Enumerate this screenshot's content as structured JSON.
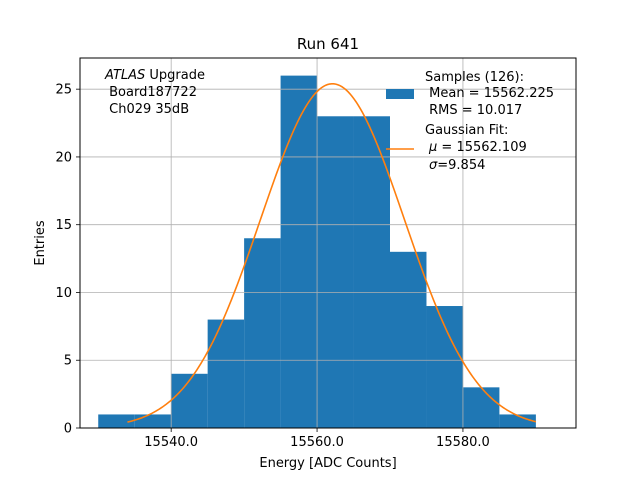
{
  "chart_data": {
    "type": "bar",
    "title": "Run 641",
    "xlabel": "Energy [ADC Counts]",
    "ylabel": "Entries",
    "xlim": [
      15527.5,
      15595.5
    ],
    "ylim": [
      0,
      27.3
    ],
    "grid": true,
    "xticks": [
      15540,
      15560,
      15580
    ],
    "xtick_labels": [
      "15540.0",
      "15560.0",
      "15580.0"
    ],
    "yticks": [
      0,
      5,
      10,
      15,
      20,
      25
    ],
    "ytick_labels": [
      "0",
      "5",
      "10",
      "15",
      "20",
      "25"
    ],
    "bin_edges": [
      15530,
      15535,
      15540,
      15545,
      15550,
      15555,
      15560,
      15565,
      15570,
      15575,
      15580,
      15585,
      15590
    ],
    "values": [
      1,
      1,
      4,
      8,
      14,
      26,
      23,
      23,
      13,
      9,
      3,
      1
    ],
    "bar_color": "#1f77b4",
    "fit": {
      "mu": 15562.109,
      "sigma": 9.854,
      "amplitude": 25.4,
      "x_range": [
        15534,
        15590
      ],
      "color": "#ff7f0e"
    },
    "annotation": {
      "line1_italic": "ATLAS",
      "line1_rest": " Upgrade",
      "line2": " Board187722",
      "line3": " Ch029 35dB"
    },
    "legend": {
      "placement": "top-right",
      "samples": {
        "line1": "Samples (126):",
        "line2": " Mean = 15562.225",
        "line3": " RMS = 10.017"
      },
      "fit": {
        "line1": "Gaussian Fit:",
        "line2_sym": "μ",
        "line2_rest": " = 15562.109",
        "line3_sym": "σ",
        "line3_rest": "=9.854"
      }
    }
  }
}
